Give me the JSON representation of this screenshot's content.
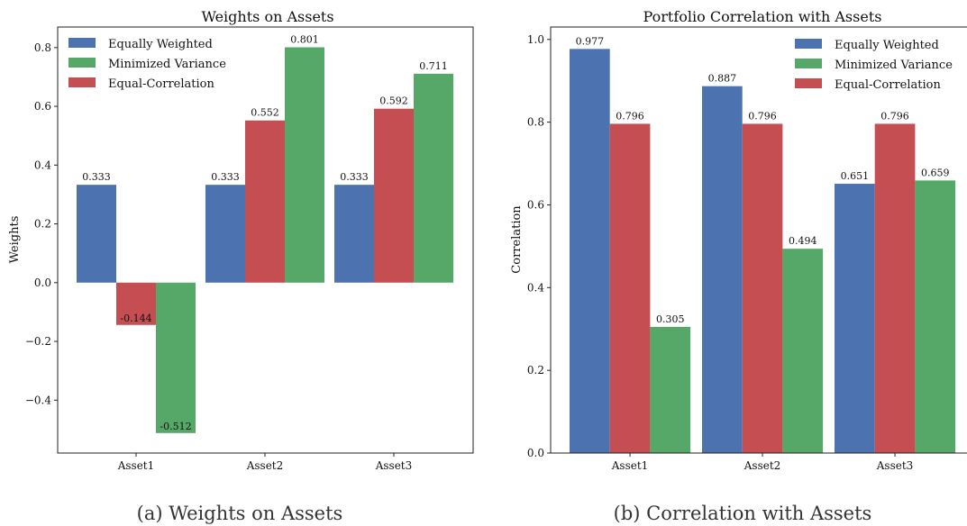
{
  "colors": {
    "Equally Weighted": "#4c72b0",
    "Minimized Variance": "#55a868",
    "Equal-Correlation": "#c44e52"
  },
  "chart_data": [
    {
      "type": "bar",
      "title": "Weights on Assets",
      "xlabel": "",
      "ylabel": "Weights",
      "categories": [
        "Asset1",
        "Asset2",
        "Asset3"
      ],
      "ylim": [
        -0.58,
        0.87
      ],
      "yticks": [
        -0.4,
        -0.2,
        0.0,
        0.2,
        0.4,
        0.6,
        0.8
      ],
      "ytick_labels": [
        "−0.4",
        "−0.2",
        "0.0",
        "0.2",
        "0.4",
        "0.6",
        "0.8"
      ],
      "legend_position": "top-left",
      "series_order": [
        "Equally Weighted",
        "Equal-Correlation",
        "Minimized Variance"
      ],
      "legend_order": [
        "Equally Weighted",
        "Minimized Variance",
        "Equal-Correlation"
      ],
      "series": [
        {
          "name": "Equally Weighted",
          "values": [
            0.333,
            0.333,
            0.333
          ],
          "labels": [
            "0.333",
            "0.333",
            "0.333"
          ]
        },
        {
          "name": "Equal-Correlation",
          "values": [
            -0.144,
            0.552,
            0.592
          ],
          "labels": [
            "-0.144",
            "0.552",
            "0.592"
          ]
        },
        {
          "name": "Minimized Variance",
          "values": [
            -0.512,
            0.801,
            0.711
          ],
          "labels": [
            "-0.512",
            "0.801",
            "0.711"
          ]
        }
      ],
      "caption": "(a) Weights on Assets"
    },
    {
      "type": "bar",
      "title": "Portfolio Correlation with Assets",
      "xlabel": "",
      "ylabel": "Correlation",
      "categories": [
        "Asset1",
        "Asset2",
        "Asset3"
      ],
      "ylim": [
        0.0,
        1.03
      ],
      "yticks": [
        0.0,
        0.2,
        0.4,
        0.6,
        0.8,
        1.0
      ],
      "ytick_labels": [
        "0.0",
        "0.2",
        "0.4",
        "0.6",
        "0.8",
        "1.0"
      ],
      "legend_position": "top-right",
      "series_order": [
        "Equally Weighted",
        "Equal-Correlation",
        "Minimized Variance"
      ],
      "legend_order": [
        "Equally Weighted",
        "Minimized Variance",
        "Equal-Correlation"
      ],
      "series": [
        {
          "name": "Equally Weighted",
          "values": [
            0.977,
            0.887,
            0.651
          ],
          "labels": [
            "0.977",
            "0.887",
            "0.651"
          ]
        },
        {
          "name": "Equal-Correlation",
          "values": [
            0.796,
            0.796,
            0.796
          ],
          "labels": [
            "0.796",
            "0.796",
            "0.796"
          ]
        },
        {
          "name": "Minimized Variance",
          "values": [
            0.305,
            0.494,
            0.659
          ],
          "labels": [
            "0.305",
            "0.494",
            "0.659"
          ]
        }
      ],
      "caption": "(b) Correlation with Assets"
    }
  ]
}
